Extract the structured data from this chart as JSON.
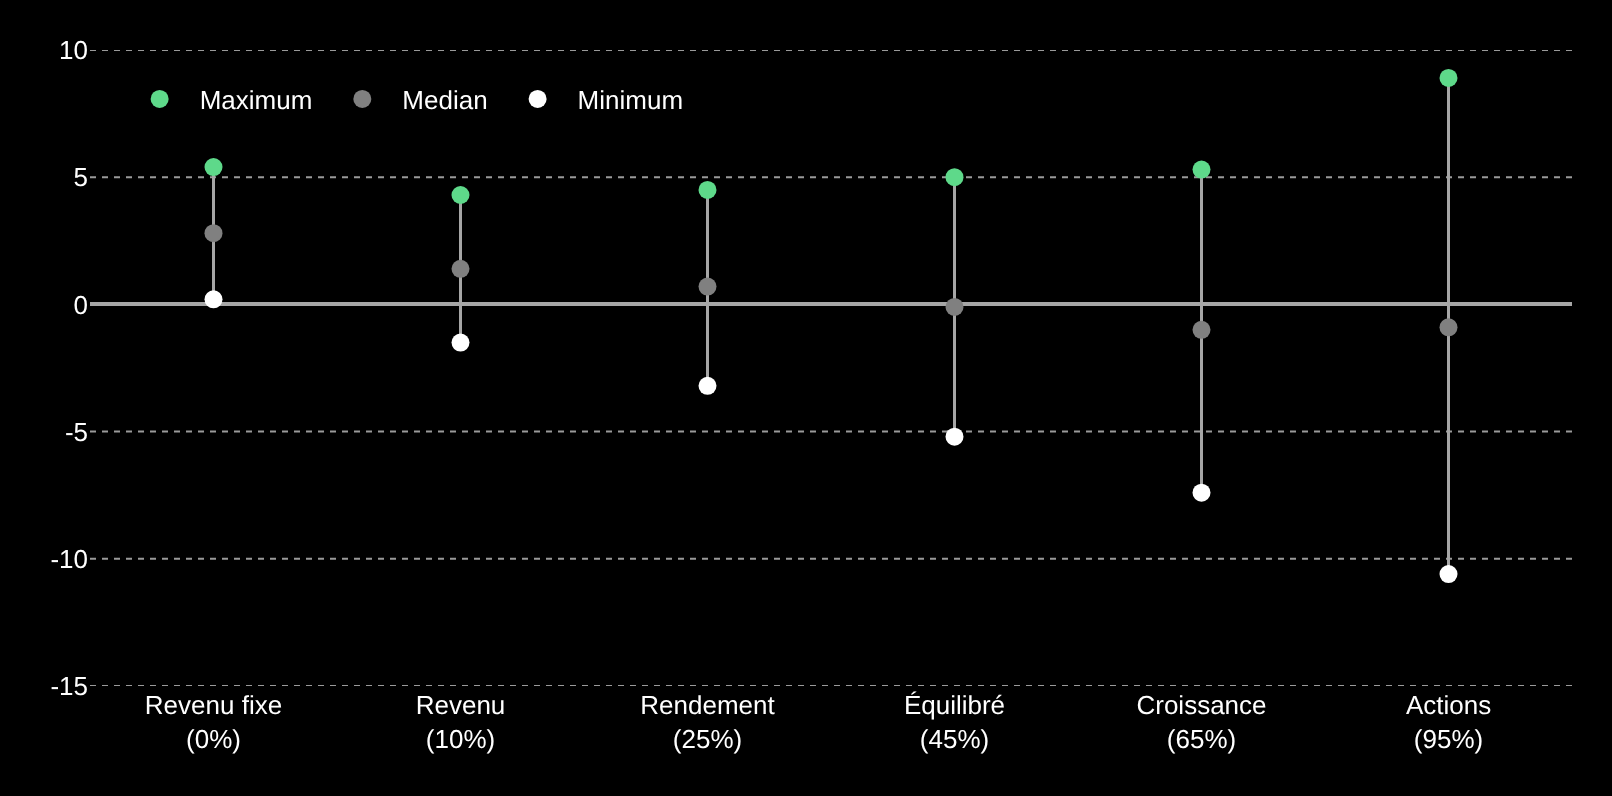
{
  "chart_data": {
    "type": "scatter",
    "categories": [
      "Revenu fixe\n(0%)",
      "Revenu\n(10%)",
      "Rendement\n(25%)",
      "Équilibré\n(45%)",
      "Croissance\n(65%)",
      "Actions\n(95%)"
    ],
    "series": [
      {
        "name": "Maximum",
        "color": "#5ed98a",
        "values": [
          5.4,
          4.3,
          4.5,
          5.0,
          5.3,
          8.9
        ]
      },
      {
        "name": "Median",
        "color": "#808080",
        "values": [
          2.8,
          1.4,
          0.7,
          -0.1,
          -1.0,
          -0.9
        ]
      },
      {
        "name": "Minimum",
        "color": "#ffffff",
        "values": [
          0.2,
          -1.5,
          -3.2,
          -5.2,
          -7.4,
          -10.6
        ]
      }
    ],
    "ylim": [
      -15,
      10
    ],
    "yticks": [
      -15,
      -10,
      -5,
      0,
      5,
      10
    ],
    "grid": "y",
    "legend": "top left",
    "marker": "circle"
  }
}
